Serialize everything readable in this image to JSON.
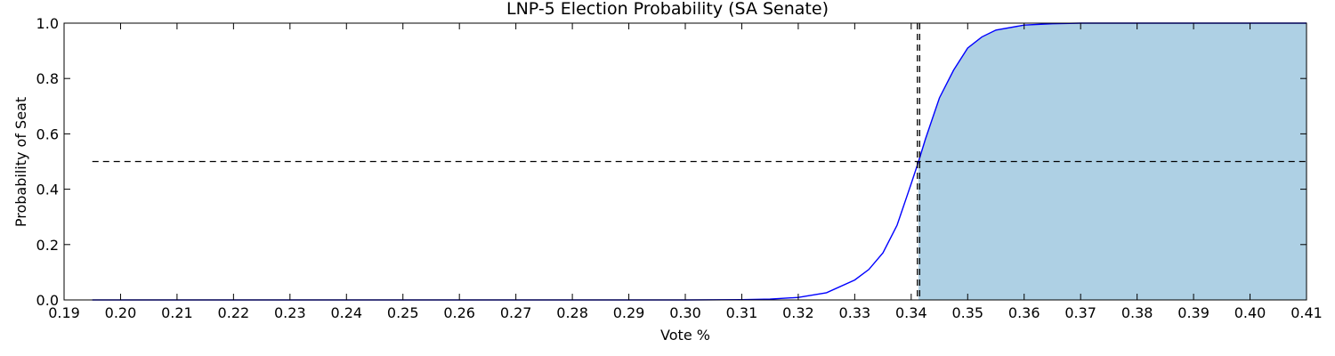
{
  "chart_data": {
    "type": "line",
    "title": "LNP-5 Election Probability (SA Senate)",
    "xlabel": "Vote %",
    "ylabel": "Probability of Seat",
    "xlim": [
      0.19,
      0.41
    ],
    "ylim": [
      0.0,
      1.0
    ],
    "x_ticks": [
      "0.19",
      "0.20",
      "0.21",
      "0.22",
      "0.23",
      "0.24",
      "0.25",
      "0.26",
      "0.27",
      "0.28",
      "0.29",
      "0.30",
      "0.31",
      "0.32",
      "0.33",
      "0.34",
      "0.35",
      "0.36",
      "0.37",
      "0.38",
      "0.39",
      "0.40",
      "0.41"
    ],
    "y_ticks": [
      "0.0",
      "0.2",
      "0.4",
      "0.6",
      "0.8",
      "1.0"
    ],
    "grid": false,
    "series": [
      {
        "color": "#0000ff",
        "x": [
          0.195,
          0.3,
          0.31,
          0.315,
          0.32,
          0.325,
          0.33,
          0.3325,
          0.335,
          0.3375,
          0.34,
          0.3413,
          0.3425,
          0.345,
          0.3475,
          0.35,
          0.3525,
          0.355,
          0.36,
          0.365,
          0.37,
          0.38,
          0.39,
          0.41
        ],
        "y": [
          0.0,
          0.0,
          0.001,
          0.003,
          0.009,
          0.026,
          0.072,
          0.11,
          0.17,
          0.27,
          0.42,
          0.5,
          0.58,
          0.73,
          0.83,
          0.91,
          0.95,
          0.975,
          0.993,
          0.998,
          1.0,
          1.0,
          1.0,
          1.0
        ]
      }
    ],
    "shaded_region": {
      "x_from": 0.3413,
      "x_to": 0.41,
      "color": "#aed0e4",
      "under_series": true
    },
    "reference_lines": [
      {
        "orientation": "horizontal",
        "value": 0.5,
        "x_from": 0.195,
        "x_to": 0.41,
        "style": "dashed",
        "color": "#000000"
      },
      {
        "orientation": "vertical",
        "value": 0.3411,
        "style": "dashed",
        "color": "#000000"
      },
      {
        "orientation": "vertical",
        "value": 0.3415,
        "style": "dashed",
        "color": "#000000"
      }
    ]
  }
}
